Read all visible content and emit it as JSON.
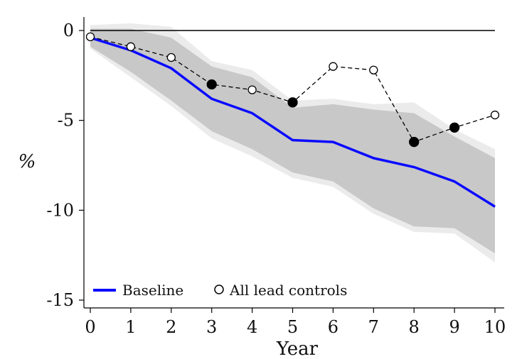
{
  "chart_data": {
    "type": "line",
    "xlabel": "Year",
    "ylabel": "%",
    "x": [
      0,
      1,
      2,
      3,
      4,
      5,
      6,
      7,
      8,
      9,
      10
    ],
    "xlim": [
      0,
      10
    ],
    "ylim": [
      -15,
      0
    ],
    "xticks": [
      0,
      1,
      2,
      3,
      4,
      5,
      6,
      7,
      8,
      9,
      10
    ],
    "yticks": [
      0,
      -5,
      -10,
      -15
    ],
    "reference_line_y": 0,
    "legend_position": "bottom-left",
    "series": [
      {
        "name": "Baseline",
        "style": "solid-line",
        "color": "#0a0aff",
        "values": [
          -0.4,
          -1.1,
          -2.1,
          -3.8,
          -4.6,
          -6.1,
          -6.2,
          -7.1,
          -7.6,
          -8.4,
          -9.8
        ],
        "ci_outer": {
          "lower": [
            -1.0,
            -2.6,
            -4.2,
            -6.0,
            -7.0,
            -8.2,
            -8.7,
            -10.2,
            -11.2,
            -11.3,
            -12.9
          ],
          "upper": [
            0.3,
            0.4,
            0.2,
            -1.7,
            -2.2,
            -3.9,
            -3.8,
            -4.1,
            -4.0,
            -5.5,
            -6.6
          ]
        },
        "ci_inner": {
          "lower": [
            -0.9,
            -2.3,
            -3.9,
            -5.6,
            -6.6,
            -7.9,
            -8.4,
            -9.9,
            -10.9,
            -11.0,
            -12.4
          ],
          "upper": [
            0.1,
            0.1,
            -0.4,
            -2.0,
            -2.6,
            -4.3,
            -4.1,
            -4.4,
            -4.6,
            -5.9,
            -7.1
          ]
        }
      },
      {
        "name": "All lead controls",
        "style": "dashed-line-circles",
        "color": "#000000",
        "values": [
          -0.35,
          -0.9,
          -1.5,
          -3.0,
          -3.3,
          -4.0,
          -2.0,
          -2.2,
          -6.2,
          -5.4,
          -4.7
        ],
        "significant": [
          false,
          false,
          false,
          true,
          false,
          true,
          false,
          false,
          true,
          true,
          false
        ]
      }
    ]
  },
  "colors": {
    "ci_outer": "#ebebeb",
    "ci_inner": "#c8c8c8",
    "axis": "#000000"
  }
}
